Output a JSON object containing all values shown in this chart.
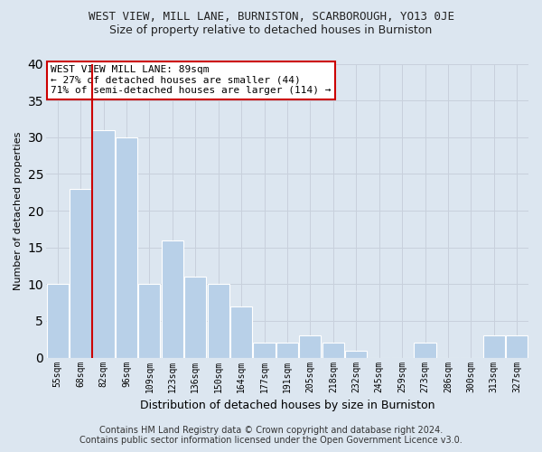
{
  "title": "WEST VIEW, MILL LANE, BURNISTON, SCARBOROUGH, YO13 0JE",
  "subtitle": "Size of property relative to detached houses in Burniston",
  "xlabel": "Distribution of detached houses by size in Burniston",
  "ylabel": "Number of detached properties",
  "footer_line1": "Contains HM Land Registry data © Crown copyright and database right 2024.",
  "footer_line2": "Contains public sector information licensed under the Open Government Licence v3.0.",
  "bar_labels": [
    "55sqm",
    "68sqm",
    "82sqm",
    "96sqm",
    "109sqm",
    "123sqm",
    "136sqm",
    "150sqm",
    "164sqm",
    "177sqm",
    "191sqm",
    "205sqm",
    "218sqm",
    "232sqm",
    "245sqm",
    "259sqm",
    "273sqm",
    "286sqm",
    "300sqm",
    "313sqm",
    "327sqm"
  ],
  "bar_values": [
    10,
    23,
    31,
    30,
    10,
    16,
    11,
    10,
    7,
    2,
    2,
    3,
    2,
    1,
    0,
    0,
    2,
    0,
    0,
    3,
    3
  ],
  "bar_color": "#b8d0e8",
  "grid_color": "#c8d0dc",
  "bg_color": "#dce6f0",
  "property_bin_index": 2,
  "annotation_line1": "WEST VIEW MILL LANE: 89sqm",
  "annotation_line2": "← 27% of detached houses are smaller (44)",
  "annotation_line3": "71% of semi-detached houses are larger (114) →",
  "annotation_box_color": "#ffffff",
  "annotation_box_edge_color": "#cc0000",
  "red_line_color": "#cc0000",
  "ylim": [
    0,
    40
  ],
  "yticks": [
    0,
    5,
    10,
    15,
    20,
    25,
    30,
    35,
    40
  ]
}
